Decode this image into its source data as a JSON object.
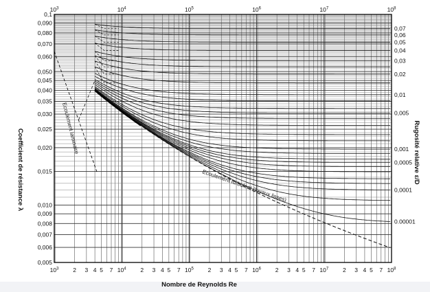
{
  "chart_data": {
    "type": "line",
    "x_scale": "log",
    "y_scale": "log",
    "xlim": [
      1000,
      100000000
    ],
    "ylim": [
      0.005,
      0.1
    ],
    "xlabel": "Nombre de Reynolds Re",
    "ylabel": "Coefficient de résistance λ",
    "y2label": "Rugosité relative ε/D",
    "grid": true,
    "x_tick_labels": [
      {
        "v": 1000,
        "base": "10",
        "exp": "3"
      },
      {
        "v": 2000,
        "t": "2"
      },
      {
        "v": 3000,
        "t": "3"
      },
      {
        "v": 4000,
        "t": "4"
      },
      {
        "v": 5000,
        "t": "5"
      },
      {
        "v": 7000,
        "t": "7"
      },
      {
        "v": 10000,
        "base": "10",
        "exp": "4"
      },
      {
        "v": 20000,
        "t": "2"
      },
      {
        "v": 30000,
        "t": "3"
      },
      {
        "v": 40000,
        "t": "4"
      },
      {
        "v": 50000,
        "t": "5"
      },
      {
        "v": 70000,
        "t": "7"
      },
      {
        "v": 100000,
        "base": "10",
        "exp": "5"
      },
      {
        "v": 200000,
        "t": "2"
      },
      {
        "v": 300000,
        "t": "3"
      },
      {
        "v": 400000,
        "t": "4"
      },
      {
        "v": 500000,
        "t": "5"
      },
      {
        "v": 700000,
        "t": "7"
      },
      {
        "v": 1000000,
        "base": "10",
        "exp": "6"
      },
      {
        "v": 2000000,
        "t": "2"
      },
      {
        "v": 3000000,
        "t": "3"
      },
      {
        "v": 4000000,
        "t": "4"
      },
      {
        "v": 5000000,
        "t": "5"
      },
      {
        "v": 7000000,
        "t": "7"
      },
      {
        "v": 10000000,
        "base": "10",
        "exp": "7"
      },
      {
        "v": 20000000,
        "t": "2"
      },
      {
        "v": 30000000,
        "t": "3"
      },
      {
        "v": 40000000,
        "t": "4"
      },
      {
        "v": 50000000,
        "t": "5"
      },
      {
        "v": 70000000,
        "t": "7"
      },
      {
        "v": 100000000,
        "base": "10",
        "exp": "8"
      }
    ],
    "x_top_tick_labels": [
      {
        "v": 1000,
        "base": "10",
        "exp": "3"
      },
      {
        "v": 10000,
        "base": "10",
        "exp": "4"
      },
      {
        "v": 100000,
        "base": "10",
        "exp": "5"
      },
      {
        "v": 1000000,
        "base": "10",
        "exp": "6"
      },
      {
        "v": 10000000,
        "base": "10",
        "exp": "7"
      },
      {
        "v": 100000000,
        "base": "10",
        "exp": "8"
      }
    ],
    "y_tick_labels": [
      {
        "v": 0.1,
        "t": "0,1"
      },
      {
        "v": 0.09,
        "t": "0,090"
      },
      {
        "v": 0.08,
        "t": "0,080"
      },
      {
        "v": 0.07,
        "t": "0,070"
      },
      {
        "v": 0.06,
        "t": "0,060"
      },
      {
        "v": 0.05,
        "t": "0,050"
      },
      {
        "v": 0.045,
        "t": "0,045"
      },
      {
        "v": 0.04,
        "t": "0,040"
      },
      {
        "v": 0.035,
        "t": "0,035"
      },
      {
        "v": 0.03,
        "t": "0,030"
      },
      {
        "v": 0.025,
        "t": "0,025"
      },
      {
        "v": 0.02,
        "t": "0,020"
      },
      {
        "v": 0.015,
        "t": "0,015"
      },
      {
        "v": 0.01,
        "t": "0,010"
      },
      {
        "v": 0.009,
        "t": "0,009"
      },
      {
        "v": 0.008,
        "t": "0,008"
      },
      {
        "v": 0.007,
        "t": "0,007"
      },
      {
        "v": 0.006,
        "t": "0,006"
      },
      {
        "v": 0.005,
        "t": "0,005"
      }
    ],
    "roughness_labels": [
      {
        "rr": 0.07,
        "t": "0,07"
      },
      {
        "rr": 0.06,
        "t": "0,06"
      },
      {
        "rr": 0.05,
        "t": "0,05"
      },
      {
        "rr": 0.04,
        "t": "0,04"
      },
      {
        "rr": 0.03,
        "t": "0,03"
      },
      {
        "rr": 0.02,
        "t": "0,02"
      },
      {
        "rr": 0.01,
        "t": "0,01"
      },
      {
        "rr": 0.005,
        "t": "0,005"
      },
      {
        "rr": 0.001,
        "t": "0,001"
      },
      {
        "rr": 0.0005,
        "t": "0,0005"
      },
      {
        "rr": 0.0001,
        "t": "0,0001"
      },
      {
        "rr": 1e-05,
        "t": "0.00001"
      }
    ],
    "roughness_curves": [
      0.07,
      0.06,
      0.05,
      0.04,
      0.03,
      0.025,
      0.02,
      0.015,
      0.01,
      0.008,
      0.006,
      0.005,
      0.004,
      0.003,
      0.002,
      0.0015,
      0.001,
      0.0008,
      0.0006,
      0.0005,
      0.0004,
      0.0003,
      0.0002,
      0.00015,
      0.0001,
      5e-05,
      1e-05
    ],
    "laminar_curve": {
      "formula": "64/Re",
      "x_range": [
        1000,
        4500
      ]
    },
    "smooth_pipe_curve": {
      "x_range": [
        4000,
        100000000
      ]
    },
    "annotations": {
      "laminar": "Ecoulement laminaire",
      "turbulent": "Ecoulement turbulent (tuyaux lisses)"
    }
  }
}
